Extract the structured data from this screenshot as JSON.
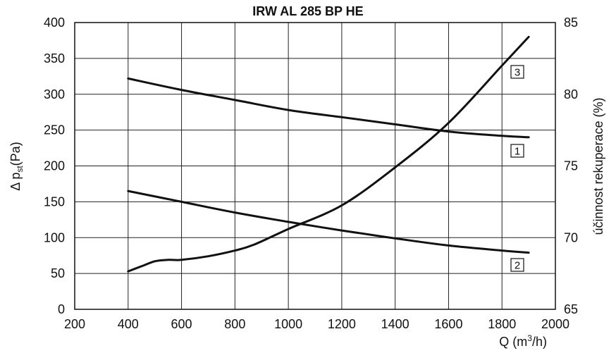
{
  "chart_data": {
    "type": "line",
    "title": "IRW AL 285 BP HE",
    "xlabel": "Q (m³/h)",
    "ylabel": "Δpst(Pa)",
    "y2label": "účinnost rekuperace (%)",
    "xlim": [
      200,
      2000
    ],
    "ylim": [
      0,
      400
    ],
    "y2lim": [
      65,
      85
    ],
    "x_ticks": [
      200,
      400,
      600,
      800,
      1000,
      1200,
      1400,
      1600,
      1800,
      2000
    ],
    "y_ticks": [
      0,
      50,
      100,
      150,
      200,
      250,
      300,
      350,
      400
    ],
    "y2_ticks": [
      65,
      70,
      75,
      80,
      85
    ],
    "grid": true,
    "series": [
      {
        "name": "1",
        "axis": "right",
        "x": [
          400,
          600,
          800,
          1000,
          1200,
          1400,
          1600,
          1800,
          1900
        ],
        "y": [
          81.1,
          80.3,
          79.6,
          78.9,
          78.4,
          77.9,
          77.4,
          77.1,
          77.0
        ]
      },
      {
        "name": "2",
        "axis": "left",
        "x": [
          400,
          600,
          800,
          1000,
          1200,
          1400,
          1600,
          1800,
          1900
        ],
        "y": [
          165,
          150,
          135,
          122,
          110,
          99,
          89,
          82,
          79
        ]
      },
      {
        "name": "3",
        "axis": "left",
        "x": [
          400,
          450,
          500,
          550,
          600,
          700,
          800,
          870,
          1000,
          1200,
          1400,
          1600,
          1800,
          1900
        ],
        "y": [
          53,
          60,
          67,
          69,
          69,
          74,
          82,
          90,
          112,
          145,
          198,
          260,
          340,
          380
        ]
      }
    ]
  }
}
